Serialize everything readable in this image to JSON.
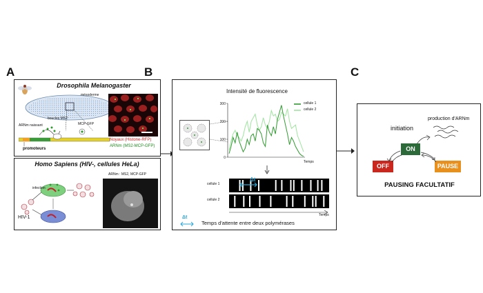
{
  "labels": {
    "a": "A",
    "b": "B",
    "c": "C"
  },
  "panel_a": {
    "top": {
      "title": "Drosophila Melanogaster",
      "mesoderm": "mésoderme",
      "ms2_loops": "boucles MS2",
      "mcp_gfp": "MCP-GFP",
      "nascent_rna": "ARNm naissant",
      "promoters": "promoteurs",
      "nuclei_label": "Noyaux (Histone-RFP)",
      "mrna_label": "ARNm (MS2-MCP-GFP)"
    },
    "bottom": {
      "title": "Homo Sapiens (HIV-, cellules HeLa)",
      "infection": "infection",
      "hiv": "HIV-1",
      "microscopy_label": "ARNm : MS2, MCP-GFP"
    }
  },
  "panel_b": {
    "chart_title": "Intensité de fluorescence",
    "legend": [
      "cellule 1",
      "cellule 2"
    ],
    "raster_rows": [
      "cellule 1",
      "cellule 2"
    ],
    "delta": "Δt",
    "footer": "Temps d'attente entre deux polymérases",
    "colors": {
      "cell1": "#2e9a2e",
      "cell2": "#9fe39f",
      "delta": "#2aa7d6"
    },
    "chart_data": {
      "type": "line",
      "xlabel": "Temps",
      "ylabel": "",
      "y_ticks": [
        0,
        100,
        200,
        300
      ],
      "ylim": [
        0,
        300
      ],
      "series": [
        {
          "name": "cellule 1",
          "values": [
            20,
            60,
            110,
            80,
            140,
            90,
            60,
            30,
            50,
            100,
            70,
            120,
            130,
            90,
            160,
            150,
            130,
            80,
            60,
            180,
            140,
            120,
            170,
            130,
            210,
            250,
            290,
            230,
            180,
            130,
            70,
            110,
            90,
            60,
            40,
            20,
            10,
            5
          ]
        },
        {
          "name": "cellule 2",
          "values": [
            40,
            90,
            130,
            150,
            120,
            110,
            90,
            120,
            170,
            200,
            140,
            200,
            220,
            240,
            180,
            150,
            170,
            220,
            180,
            160,
            200,
            260,
            230,
            240,
            200,
            210,
            250,
            240,
            230,
            270,
            200,
            160,
            170,
            180,
            120,
            90,
            60,
            30
          ]
        }
      ]
    },
    "raster": {
      "row1_bars": [
        0.1,
        0.13,
        0.21,
        0.29,
        0.46,
        0.52,
        0.61,
        0.64,
        0.72,
        0.81,
        0.88,
        0.92
      ],
      "row2_bars": [
        0.05,
        0.14,
        0.2,
        0.3,
        0.41,
        0.57,
        0.63,
        0.75,
        0.83,
        0.86,
        0.94
      ],
      "xlabel": "Temps"
    }
  },
  "panel_c": {
    "production": "production d'ARNm",
    "initiation": "initiation",
    "on": "ON",
    "off": "OFF",
    "pause": "PAUSE",
    "caption": "PAUSING FACULTATIF",
    "colors": {
      "on": "#2d6a3a",
      "off": "#c8281e",
      "pause": "#e8901e"
    }
  }
}
